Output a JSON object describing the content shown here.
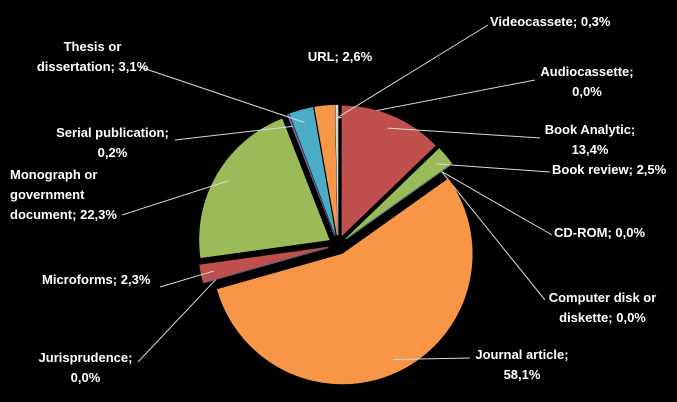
{
  "chart_data": {
    "type": "pie",
    "categories": [
      "Audiocassette",
      "Book Analytic",
      "Book review",
      "CD-ROM",
      "Computer disk or diskette",
      "Journal article",
      "Jurisprudence",
      "Microforms",
      "Monograph or government document",
      "Serial publication",
      "Thesis or dissertation",
      "URL",
      "Videocassete"
    ],
    "values": [
      0.0,
      13.4,
      2.5,
      0.0,
      0.0,
      58.1,
      0.0,
      2.3,
      22.3,
      0.2,
      3.1,
      2.6,
      0.3
    ],
    "value_labels": [
      "0,0%",
      "13,4%",
      "2,5%",
      "0,0%",
      "0,0%",
      "58,1%",
      "0,0%",
      "2,3%",
      "22,3%",
      "0,2%",
      "3,1%",
      "2,6%",
      "0,3%"
    ],
    "label_separator": ";",
    "colors": [
      "#4f81bd",
      "#c0504d",
      "#9bbb59",
      "#8064a2",
      "#4bacc6",
      "#f79646",
      "#4f81bd",
      "#c0504d",
      "#9bbb59",
      "#8064a2",
      "#4bacc6",
      "#f79646",
      "#d9d9d9"
    ]
  }
}
